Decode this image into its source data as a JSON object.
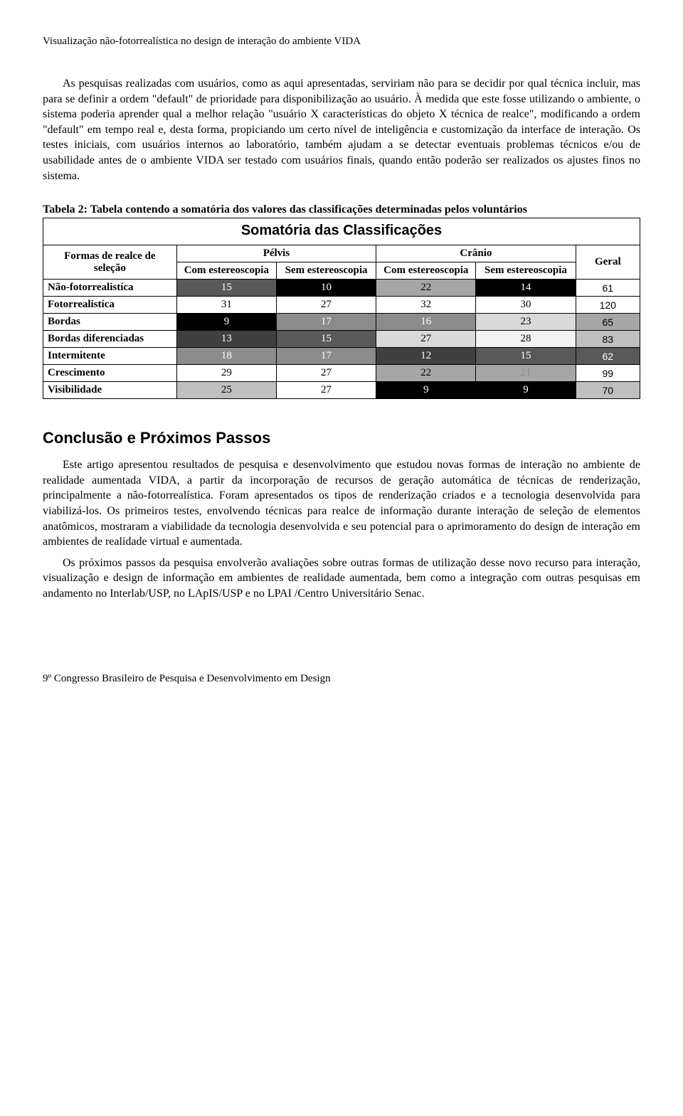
{
  "header": "Visualização não-fotorrealística no design de interação do ambiente VIDA",
  "paragraph1": "As pesquisas realizadas com usuários, como as aqui apresentadas, serviriam não para se decidir por qual técnica incluir, mas para se definir a ordem \"default\" de prioridade para disponibilização ao usuário. À medida que este fosse utilizando o ambiente, o sistema poderia aprender qual a melhor relação \"usuário X características do objeto X técnica de realce\", modificando a ordem \"default\" em tempo real e, desta forma, propiciando um certo nível de inteligência e customização da interface de interação. Os testes iniciais, com usuários internos ao laboratório, também ajudam a se detectar eventuais problemas técnicos e/ou de usabilidade antes de o ambiente VIDA ser testado com usuários finais, quando então poderão ser realizados os ajustes finos no sistema.",
  "table": {
    "caption": "Tabela 2: Tabela contendo a somatória dos valores das classificações determinadas pelos voluntários",
    "banner": "Somatória das Classificações",
    "col_group_label": "Formas de realce de seleção",
    "group1": "Pélvis",
    "group2": "Crânio",
    "geral_label": "Geral",
    "sub_com": "Com estereoscopia",
    "sub_sem": "Sem estereoscopia",
    "rows": [
      {
        "label": "Não-fotorrealistíca",
        "cells": [
          {
            "v": "15",
            "bg": "#595959",
            "fg": "#ffffff"
          },
          {
            "v": "10",
            "bg": "#000000",
            "fg": "#ffffff"
          },
          {
            "v": "22",
            "bg": "#a6a6a6",
            "fg": "#000000"
          },
          {
            "v": "14",
            "bg": "#000000",
            "fg": "#ffffff"
          }
        ],
        "geral": {
          "v": "61",
          "bg": "#ffffff",
          "fg": "#000000"
        }
      },
      {
        "label": "Fotorrealistíca",
        "cells": [
          {
            "v": "31",
            "bg": "#ffffff",
            "fg": "#000000"
          },
          {
            "v": "27",
            "bg": "#ffffff",
            "fg": "#000000"
          },
          {
            "v": "32",
            "bg": "#ffffff",
            "fg": "#000000"
          },
          {
            "v": "30",
            "bg": "#ffffff",
            "fg": "#000000"
          }
        ],
        "geral": {
          "v": "120",
          "bg": "#ffffff",
          "fg": "#000000"
        }
      },
      {
        "label": "Bordas",
        "cells": [
          {
            "v": "9",
            "bg": "#000000",
            "fg": "#ffffff"
          },
          {
            "v": "17",
            "bg": "#8c8c8c",
            "fg": "#ffffff"
          },
          {
            "v": "16",
            "bg": "#8c8c8c",
            "fg": "#ffffff"
          },
          {
            "v": "23",
            "bg": "#d9d9d9",
            "fg": "#000000"
          }
        ],
        "geral": {
          "v": "65",
          "bg": "#a6a6a6",
          "fg": "#000000"
        }
      },
      {
        "label": "Bordas diferenciadas",
        "cells": [
          {
            "v": "13",
            "bg": "#404040",
            "fg": "#ffffff"
          },
          {
            "v": "15",
            "bg": "#595959",
            "fg": "#ffffff"
          },
          {
            "v": "27",
            "bg": "#d9d9d9",
            "fg": "#000000"
          },
          {
            "v": "28",
            "bg": "#f2f2f2",
            "fg": "#000000"
          }
        ],
        "geral": {
          "v": "83",
          "bg": "#bfbfbf",
          "fg": "#000000"
        }
      },
      {
        "label": "Intermitente",
        "cells": [
          {
            "v": "18",
            "bg": "#8c8c8c",
            "fg": "#ffffff"
          },
          {
            "v": "17",
            "bg": "#8c8c8c",
            "fg": "#ffffff"
          },
          {
            "v": "12",
            "bg": "#404040",
            "fg": "#ffffff"
          },
          {
            "v": "15",
            "bg": "#595959",
            "fg": "#ffffff"
          }
        ],
        "geral": {
          "v": "62",
          "bg": "#595959",
          "fg": "#ffffff"
        }
      },
      {
        "label": "Crescimento",
        "cells": [
          {
            "v": "29",
            "bg": "#ffffff",
            "fg": "#000000"
          },
          {
            "v": "27",
            "bg": "#ffffff",
            "fg": "#000000"
          },
          {
            "v": "22",
            "bg": "#a6a6a6",
            "fg": "#000000"
          },
          {
            "v": "21",
            "bg": "#a6a6a6",
            "fg": "#8c8c8c"
          }
        ],
        "geral": {
          "v": "99",
          "bg": "#ffffff",
          "fg": "#000000"
        }
      },
      {
        "label": "Visibilidade",
        "cells": [
          {
            "v": "25",
            "bg": "#bfbfbf",
            "fg": "#000000"
          },
          {
            "v": "27",
            "bg": "#ffffff",
            "fg": "#000000"
          },
          {
            "v": "9",
            "bg": "#000000",
            "fg": "#ffffff"
          },
          {
            "v": "9",
            "bg": "#000000",
            "fg": "#ffffff"
          }
        ],
        "geral": {
          "v": "70",
          "bg": "#bfbfbf",
          "fg": "#000000"
        }
      }
    ]
  },
  "section_heading": "Conclusão e Próximos Passos",
  "paragraph2": "Este artigo apresentou resultados de pesquisa e desenvolvimento que estudou novas formas de interação no ambiente de realidade aumentada VIDA, a partir da incorporação de recursos de geração automática de técnicas de renderização, principalmente a não-fotorrealística. Foram apresentados os tipos de renderização criados e a tecnologia desenvolvida para viabilizá-los. Os primeiros testes, envolvendo técnicas para realce de informação durante interação de seleção de elementos anatômicos, mostraram a viabilidade da tecnologia desenvolvida e seu potencial para o aprimoramento do design de interação em ambientes de realidade virtual e aumentada.",
  "paragraph3": "Os próximos passos da pesquisa envolverão avaliações sobre outras formas de utilização desse novo recurso para interação, visualização e design de informação em ambientes de realidade aumentada, bem como a integração com outras pesquisas em andamento no Interlab/USP, no LApIS/USP e no LPAI /Centro Universitário Senac.",
  "footer": "9º Congresso Brasileiro de Pesquisa e Desenvolvimento em Design"
}
